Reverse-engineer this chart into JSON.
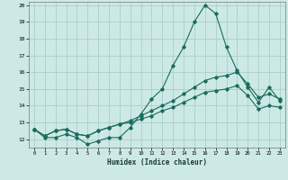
{
  "xlabel": "Humidex (Indice chaleur)",
  "xlim": [
    -0.5,
    23.5
  ],
  "ylim": [
    11.5,
    20.2
  ],
  "yticks": [
    12,
    13,
    14,
    15,
    16,
    17,
    18,
    19,
    20
  ],
  "xticks": [
    0,
    1,
    2,
    3,
    4,
    5,
    6,
    7,
    8,
    9,
    10,
    11,
    12,
    13,
    14,
    15,
    16,
    17,
    18,
    19,
    20,
    21,
    22,
    23
  ],
  "background_color": "#cce9e6",
  "grid_color": "#aacfcc",
  "line_color": "#1a6b5a",
  "line1_y": [
    12.6,
    12.1,
    12.1,
    12.3,
    12.1,
    11.7,
    11.9,
    12.1,
    12.1,
    12.7,
    13.5,
    14.4,
    15.0,
    16.4,
    17.5,
    19.0,
    20.0,
    19.5,
    17.5,
    16.1,
    15.1,
    14.2,
    15.1,
    14.3
  ],
  "line2_y": [
    12.6,
    12.2,
    12.5,
    12.6,
    12.3,
    12.2,
    12.5,
    12.7,
    12.9,
    13.1,
    13.4,
    13.7,
    14.0,
    14.3,
    14.7,
    15.1,
    15.5,
    15.7,
    15.8,
    16.0,
    15.3,
    14.5,
    14.7,
    14.4
  ],
  "line3_y": [
    12.6,
    12.2,
    12.5,
    12.6,
    12.3,
    12.2,
    12.5,
    12.7,
    12.9,
    13.0,
    13.2,
    13.4,
    13.7,
    13.9,
    14.2,
    14.5,
    14.8,
    14.9,
    15.0,
    15.2,
    14.6,
    13.8,
    14.0,
    13.9
  ]
}
